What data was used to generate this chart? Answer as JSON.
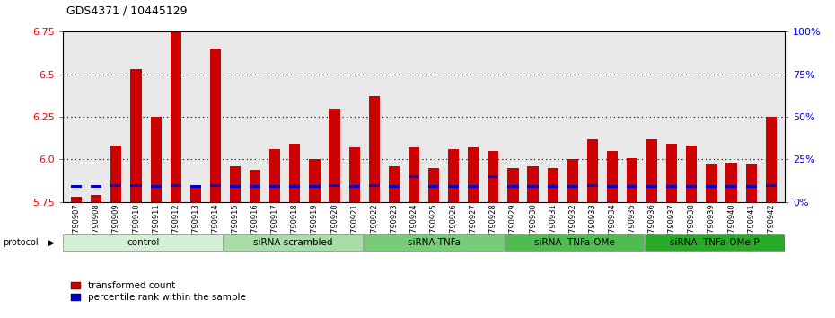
{
  "title": "GDS4371 / 10445129",
  "samples": [
    "GSM790907",
    "GSM790908",
    "GSM790909",
    "GSM790910",
    "GSM790911",
    "GSM790912",
    "GSM790913",
    "GSM790914",
    "GSM790915",
    "GSM790916",
    "GSM790917",
    "GSM790918",
    "GSM790919",
    "GSM790920",
    "GSM790921",
    "GSM790922",
    "GSM790923",
    "GSM790924",
    "GSM790925",
    "GSM790926",
    "GSM790927",
    "GSM790928",
    "GSM790929",
    "GSM790930",
    "GSM790931",
    "GSM790932",
    "GSM790933",
    "GSM790934",
    "GSM790935",
    "GSM790936",
    "GSM790937",
    "GSM790938",
    "GSM790939",
    "GSM790940",
    "GSM790941",
    "GSM790942"
  ],
  "red_values": [
    5.78,
    5.79,
    6.08,
    6.53,
    6.25,
    6.75,
    5.84,
    6.65,
    5.96,
    5.94,
    6.06,
    6.09,
    6.0,
    6.3,
    6.07,
    6.37,
    5.96,
    6.07,
    5.95,
    6.06,
    6.07,
    6.05,
    5.95,
    5.96,
    5.95,
    6.0,
    6.12,
    6.05,
    6.01,
    6.12,
    6.09,
    6.08,
    5.97,
    5.98,
    5.97,
    6.25
  ],
  "blue_values": [
    5.84,
    5.84,
    5.848,
    5.848,
    5.84,
    5.848,
    5.84,
    5.848,
    5.84,
    5.84,
    5.84,
    5.84,
    5.84,
    5.848,
    5.84,
    5.848,
    5.84,
    5.9,
    5.84,
    5.84,
    5.84,
    5.9,
    5.84,
    5.84,
    5.84,
    5.84,
    5.848,
    5.84,
    5.84,
    5.84,
    5.84,
    5.84,
    5.84,
    5.84,
    5.84,
    5.848
  ],
  "groups": [
    {
      "label": "control",
      "start": 0,
      "end": 8,
      "color": "#d4f0d4"
    },
    {
      "label": "siRNA scrambled",
      "start": 8,
      "end": 15,
      "color": "#a8dda8"
    },
    {
      "label": "siRNA TNFa",
      "start": 15,
      "end": 22,
      "color": "#78cc78"
    },
    {
      "label": "siRNA  TNFa-OMe",
      "start": 22,
      "end": 29,
      "color": "#50bb50"
    },
    {
      "label": "siRNA  TNFa-OMe-P",
      "start": 29,
      "end": 36,
      "color": "#28aa28"
    }
  ],
  "y_min": 5.75,
  "y_max": 6.75,
  "y_ticks_left": [
    5.75,
    6.0,
    6.25,
    6.5,
    6.75
  ],
  "y_ticks_right_vals": [
    0,
    25,
    50,
    75,
    100
  ],
  "y_ticks_right_labels": [
    "0%",
    "25%",
    "50%",
    "75%",
    "100%"
  ],
  "dotted_lines": [
    6.0,
    6.25,
    6.5
  ],
  "bar_color": "#cc0000",
  "blue_color": "#0000cc",
  "bar_width": 0.55,
  "plot_bg": "#e8e8e8",
  "legend_red": "transformed count",
  "legend_blue": "percentile rank within the sample"
}
